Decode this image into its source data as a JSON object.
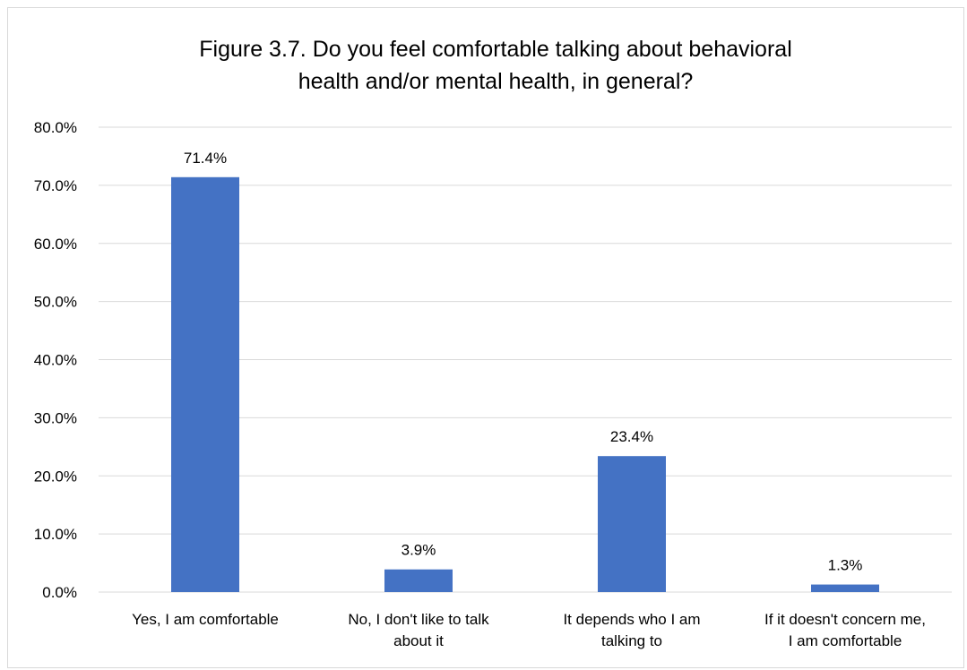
{
  "chart_data": {
    "type": "bar",
    "title_lines": [
      "Figure 3.7. Do you feel comfortable talking about behavioral",
      "health and/or mental health, in general?"
    ],
    "categories": [
      [
        "Yes, I am comfortable"
      ],
      [
        "No, I don't like to talk",
        "about it"
      ],
      [
        "It depends who I am",
        "talking to"
      ],
      [
        "If it doesn't concern me,",
        "I am comfortable"
      ]
    ],
    "values": [
      71.4,
      3.9,
      23.4,
      1.3
    ],
    "data_labels": [
      "71.4%",
      "3.9%",
      "23.4%",
      "1.3%"
    ],
    "ylim": [
      0,
      80
    ],
    "yticks": [
      0,
      10,
      20,
      30,
      40,
      50,
      60,
      70,
      80
    ],
    "ytick_labels": [
      "0.0%",
      "10.0%",
      "20.0%",
      "30.0%",
      "40.0%",
      "50.0%",
      "60.0%",
      "70.0%",
      "80.0%"
    ],
    "grid": true,
    "colors": {
      "bar": "#4472c4",
      "grid": "#d9d9d9",
      "text": "#000000",
      "tick_text": "#000000"
    }
  }
}
